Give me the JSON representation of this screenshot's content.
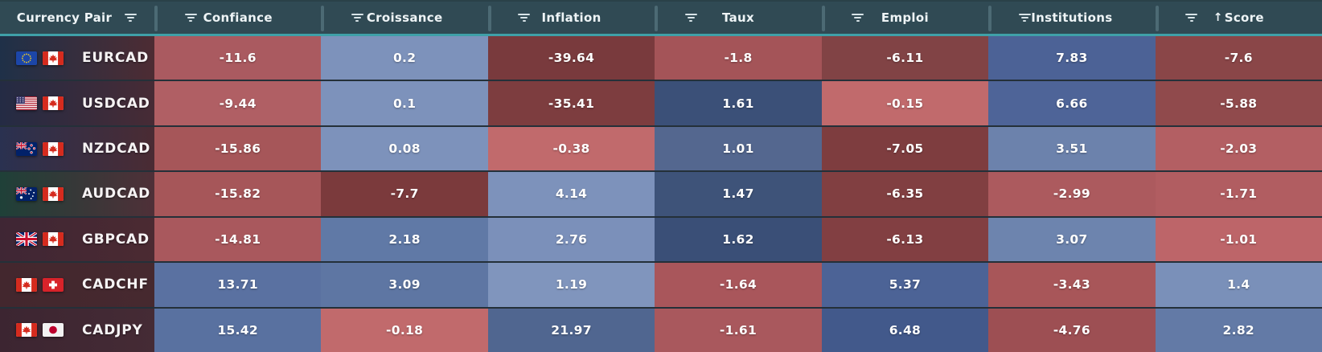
{
  "table": {
    "columns": [
      {
        "label": "Currency Pair"
      },
      {
        "label": "Confiance"
      },
      {
        "label": "Croissance"
      },
      {
        "label": "Inflation"
      },
      {
        "label": "Taux"
      },
      {
        "label": "Emploi"
      },
      {
        "label": "Institutions"
      },
      {
        "label": "Score",
        "sort_indicator": "↑"
      }
    ],
    "rows": [
      {
        "pair": "EURCAD",
        "flags": [
          "eu",
          "ca"
        ],
        "pair_bg_from": "#1f3048",
        "pair_bg_to": "#4d2c33",
        "cells": [
          {
            "value": "-11.6",
            "bg": "#aa5a60"
          },
          {
            "value": "0.2",
            "bg": "#7d92bb"
          },
          {
            "value": "-39.64",
            "bg": "#793a3d"
          },
          {
            "value": "-1.8",
            "bg": "#a45458"
          },
          {
            "value": "-6.11",
            "bg": "#814345"
          },
          {
            "value": "7.83",
            "bg": "#4c6296"
          },
          {
            "value": "-7.6",
            "bg": "#8a4648"
          }
        ]
      },
      {
        "pair": "USDCAD",
        "flags": [
          "us",
          "ca"
        ],
        "pair_bg_from": "#242b44",
        "pair_bg_to": "#472b35",
        "cells": [
          {
            "value": "-9.44",
            "bg": "#b05f64"
          },
          {
            "value": "0.1",
            "bg": "#7d92bb"
          },
          {
            "value": "-35.41",
            "bg": "#7d3d3f"
          },
          {
            "value": "1.61",
            "bg": "#3b5078"
          },
          {
            "value": "-0.15",
            "bg": "#c16a6c"
          },
          {
            "value": "6.66",
            "bg": "#4e6498"
          },
          {
            "value": "-5.88",
            "bg": "#904a4c"
          }
        ]
      },
      {
        "pair": "NZDCAD",
        "flags": [
          "nz",
          "ca"
        ],
        "pair_bg_from": "#2a3150",
        "pair_bg_to": "#4a2b33",
        "cells": [
          {
            "value": "-15.86",
            "bg": "#a65659"
          },
          {
            "value": "0.08",
            "bg": "#7d92bb"
          },
          {
            "value": "-0.38",
            "bg": "#c16a6c"
          },
          {
            "value": "1.01",
            "bg": "#54678f"
          },
          {
            "value": "-7.05",
            "bg": "#7e3d3f"
          },
          {
            "value": "3.51",
            "bg": "#6c82ac"
          },
          {
            "value": "-2.03",
            "bg": "#b35f63"
          }
        ]
      },
      {
        "pair": "AUDCAD",
        "flags": [
          "au",
          "ca"
        ],
        "pair_bg_from": "#1f4038",
        "pair_bg_to": "#4f3038",
        "cells": [
          {
            "value": "-15.82",
            "bg": "#a65659"
          },
          {
            "value": "-7.7",
            "bg": "#7b3a3c"
          },
          {
            "value": "4.14",
            "bg": "#7d92bb"
          },
          {
            "value": "1.47",
            "bg": "#3e5379"
          },
          {
            "value": "-6.35",
            "bg": "#813f41"
          },
          {
            "value": "-2.99",
            "bg": "#ac5a5e"
          },
          {
            "value": "-1.71",
            "bg": "#b15d61"
          }
        ]
      },
      {
        "pair": "GBPCAD",
        "flags": [
          "gb",
          "ca"
        ],
        "pair_bg_from": "#3f2634",
        "pair_bg_to": "#4b2a32",
        "cells": [
          {
            "value": "-14.81",
            "bg": "#a9585d"
          },
          {
            "value": "2.18",
            "bg": "#6079a6"
          },
          {
            "value": "2.76",
            "bg": "#7b90ba"
          },
          {
            "value": "1.62",
            "bg": "#3a4f77"
          },
          {
            "value": "-6.13",
            "bg": "#823f42"
          },
          {
            "value": "3.07",
            "bg": "#6d84ae"
          },
          {
            "value": "-1.01",
            "bg": "#bd6569"
          }
        ]
      },
      {
        "pair": "CADCHF",
        "flags": [
          "ca",
          "ch"
        ],
        "pair_bg_from": "#43272e",
        "pair_bg_to": "#46292f",
        "cells": [
          {
            "value": "13.71",
            "bg": "#5a71a1"
          },
          {
            "value": "3.09",
            "bg": "#5e76a3"
          },
          {
            "value": "1.19",
            "bg": "#8095bd"
          },
          {
            "value": "-1.64",
            "bg": "#a9565b"
          },
          {
            "value": "5.37",
            "bg": "#4c6396"
          },
          {
            "value": "-3.43",
            "bg": "#a85659"
          },
          {
            "value": "1.4",
            "bg": "#7a90b9"
          }
        ]
      },
      {
        "pair": "CADJPY",
        "flags": [
          "ca",
          "jp"
        ],
        "pair_bg_from": "#3c2531",
        "pair_bg_to": "#452b35",
        "cells": [
          {
            "value": "15.42",
            "bg": "#5971a0"
          },
          {
            "value": "-0.18",
            "bg": "#c16a6c"
          },
          {
            "value": "21.97",
            "bg": "#506690"
          },
          {
            "value": "-1.61",
            "bg": "#a9585d"
          },
          {
            "value": "6.48",
            "bg": "#42598b"
          },
          {
            "value": "-4.76",
            "bg": "#9d4f53"
          },
          {
            "value": "2.82",
            "bg": "#637aa6"
          }
        ]
      }
    ]
  },
  "colors": {
    "header_bg": "#304a54",
    "header_separator": "#4c6a74",
    "header_text": "#eef4f6",
    "divider_teal": "#3fa0a8",
    "row_divider": "#243039",
    "cell_text": "#ffffff"
  }
}
